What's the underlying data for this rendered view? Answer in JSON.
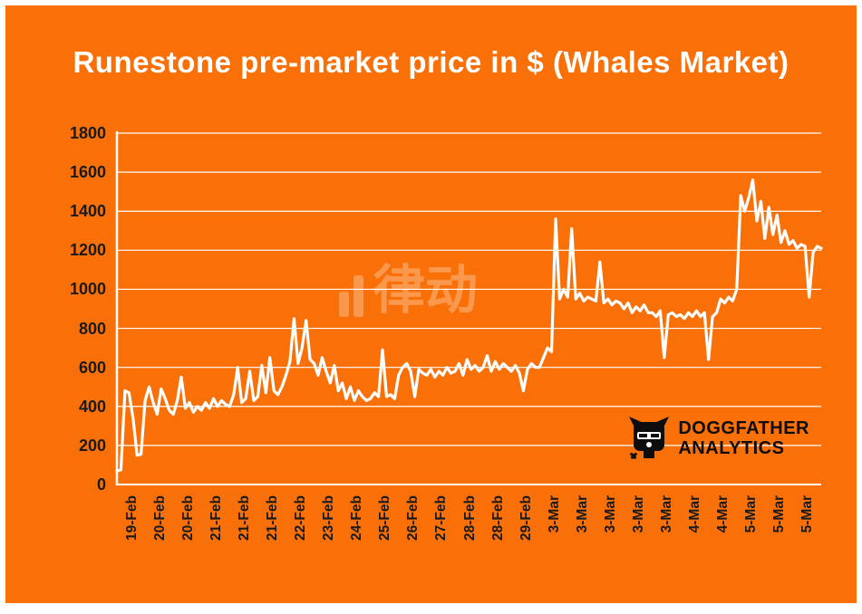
{
  "watermark": {
    "text": "律动"
  },
  "logo": {
    "line1": "DOGGFATHER",
    "line2": "ANALYTICS"
  },
  "colors": {
    "background": "#F97008",
    "line": "#FFFFFF",
    "grid": "#FFFFFF",
    "axis_text": "#1A1A1A",
    "title_text": "#FFFFFF",
    "logo_text": "#0D0D0D"
  },
  "chart_data": {
    "type": "line",
    "title": "Runestone pre-market price in $ (Whales Market)",
    "xlabel": "",
    "ylabel": "",
    "ylim": [
      0,
      1800
    ],
    "y_ticks": [
      0,
      200,
      400,
      600,
      800,
      1000,
      1200,
      1400,
      1600,
      1800
    ],
    "grid": "horizontal",
    "legend": "none",
    "x_tick_labels": [
      "19-Feb",
      "20-Feb",
      "20-Feb",
      "21-Feb",
      "21-Feb",
      "21-Feb",
      "22-Feb",
      "23-Feb",
      "24-Feb",
      "25-Feb",
      "26-Feb",
      "27-Feb",
      "28-Feb",
      "28-Feb",
      "29-Feb",
      "3-Mar",
      "3-Mar",
      "3-Mar",
      "3-Mar",
      "3-Mar",
      "4-Mar",
      "4-Mar",
      "5-Mar",
      "5-Mar",
      "5-Mar"
    ],
    "series": [
      {
        "name": "Runestone pre-market price ($)",
        "color": "#FFFFFF",
        "values": [
          70,
          75,
          480,
          470,
          340,
          150,
          155,
          430,
          500,
          420,
          360,
          490,
          440,
          380,
          360,
          430,
          550,
          390,
          420,
          370,
          400,
          380,
          420,
          390,
          440,
          400,
          430,
          410,
          400,
          460,
          600,
          420,
          440,
          580,
          430,
          450,
          610,
          470,
          650,
          480,
          460,
          500,
          560,
          630,
          850,
          620,
          700,
          840,
          640,
          620,
          560,
          650,
          580,
          520,
          610,
          480,
          520,
          440,
          500,
          430,
          480,
          450,
          430,
          440,
          470,
          450,
          690,
          450,
          460,
          440,
          560,
          600,
          620,
          580,
          450,
          590,
          570,
          560,
          590,
          550,
          580,
          560,
          600,
          570,
          580,
          620,
          560,
          640,
          590,
          610,
          580,
          600,
          660,
          580,
          630,
          590,
          620,
          600,
          580,
          610,
          570,
          480,
          590,
          620,
          600,
          600,
          650,
          700,
          680,
          1360,
          950,
          1000,
          960,
          1310,
          950,
          980,
          940,
          960,
          950,
          940,
          1140,
          930,
          950,
          920,
          940,
          930,
          900,
          930,
          880,
          910,
          890,
          920,
          880,
          880,
          860,
          890,
          650,
          870,
          880,
          860,
          870,
          850,
          880,
          860,
          890,
          860,
          880,
          640,
          860,
          880,
          950,
          930,
          960,
          940,
          1000,
          1480,
          1400,
          1470,
          1560,
          1350,
          1450,
          1260,
          1420,
          1280,
          1380,
          1240,
          1300,
          1230,
          1250,
          1210,
          1230,
          1220,
          960,
          1190,
          1220,
          1210
        ]
      }
    ]
  }
}
